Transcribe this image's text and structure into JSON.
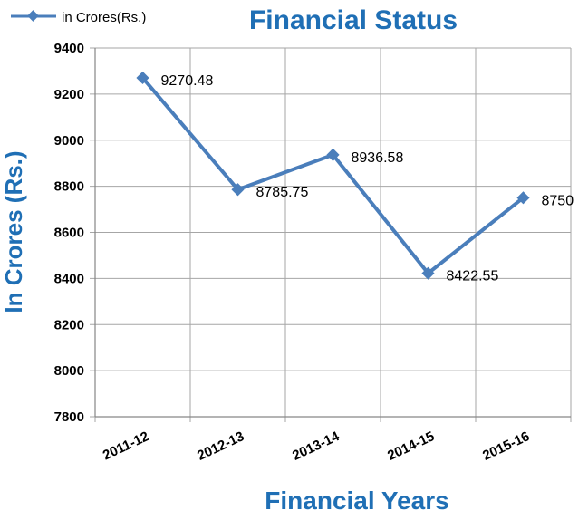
{
  "chart_data": {
    "type": "line",
    "title": "Financial Status",
    "xlabel": "Financial  Years",
    "ylabel": "In Crores (Rs.)",
    "categories": [
      "2011-12",
      "2012-13",
      "2013-14",
      "2014-15",
      "2015-16"
    ],
    "series": [
      {
        "name": "in Crores(Rs.)",
        "values": [
          9270.48,
          8785.75,
          8936.58,
          8422.55,
          8750
        ],
        "labels": [
          "9270.48",
          "8785.75",
          "8936.58",
          "8422.55",
          "8750"
        ]
      }
    ],
    "ylim": [
      7800,
      9400
    ],
    "yticks": [
      "7800",
      "8000",
      "8200",
      "8400",
      "8600",
      "8800",
      "9000",
      "9200",
      "9400"
    ],
    "grid": true,
    "legend": "top-left",
    "colors": {
      "series": "#4a7ebb",
      "title": "#1f6fb5",
      "grid": "#a6a6a6"
    }
  }
}
